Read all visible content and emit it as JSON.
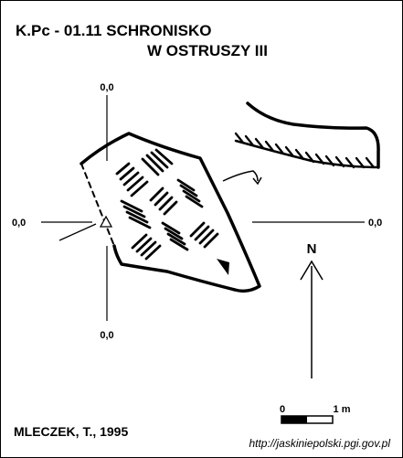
{
  "title": {
    "line1": "K.Pc - 01.11  SCHRONISKO",
    "line2": "W OSTRUSZY III"
  },
  "datum_labels": {
    "top": "0,0",
    "bottom": "0,0",
    "left": "0,0",
    "right": "0,0"
  },
  "north_label": "N",
  "scale": {
    "start": "0",
    "end": "1 m"
  },
  "author": "MLECZEK, T., 1995",
  "source_url": "http://jaskiniepolski.pgi.gov.pl"
}
